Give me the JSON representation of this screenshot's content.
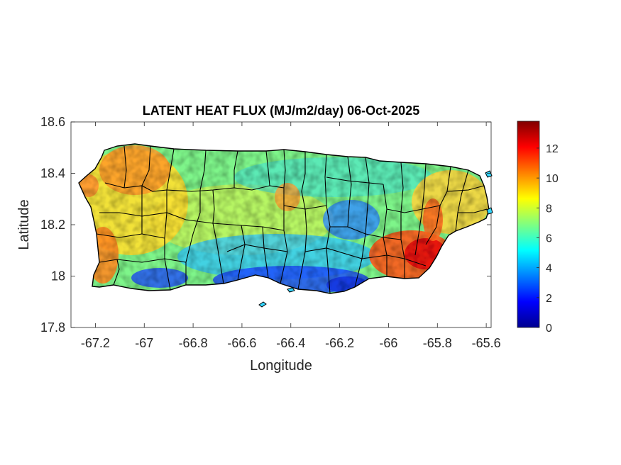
{
  "chart_data": {
    "type": "heatmap",
    "title": "LATENT HEAT FLUX (MJ/m2/day) 06-Oct-2025",
    "xlabel": "Longitude",
    "ylabel": "Latitude",
    "xlim": [
      -67.3,
      -65.58
    ],
    "ylim": [
      17.8,
      18.6
    ],
    "xticks": [
      -67.2,
      -67,
      -66.8,
      -66.6,
      -66.4,
      -66.2,
      -66,
      -65.8,
      -65.6
    ],
    "xtick_labels": [
      "-67.2",
      "-67",
      "-66.8",
      "-66.6",
      "-66.4",
      "-66.2",
      "-66",
      "-65.8",
      "-65.6"
    ],
    "yticks": [
      17.8,
      18,
      18.2,
      18.4,
      18.6
    ],
    "ytick_labels": [
      "17.8",
      "18",
      "18.2",
      "18.4",
      "18.6"
    ],
    "colorbar": {
      "colormap": "jet",
      "range": [
        0,
        13.8
      ],
      "ticks": [
        0,
        2,
        4,
        6,
        8,
        10,
        12
      ],
      "tick_labels": [
        "0",
        "2",
        "4",
        "6",
        "8",
        "10",
        "12"
      ]
    },
    "field_summary": [
      {
        "region": "west and northwest coast",
        "value_range": [
          9,
          11
        ]
      },
      {
        "region": "central interior",
        "value_range": [
          6,
          8
        ]
      },
      {
        "region": "east-central interior",
        "value_range": [
          3,
          5
        ]
      },
      {
        "region": "south coast",
        "value_range": [
          1,
          4
        ]
      },
      {
        "region": "southeast corner",
        "value_range": [
          11,
          13.5
        ]
      }
    ],
    "grid": false
  },
  "colors": {
    "border": "#000000",
    "axis": "#262626",
    "colormap_stops": [
      "#00008f",
      "#0000ff",
      "#0080ff",
      "#00ffff",
      "#80ff80",
      "#ffff00",
      "#ff8000",
      "#ff0000",
      "#800000"
    ]
  }
}
